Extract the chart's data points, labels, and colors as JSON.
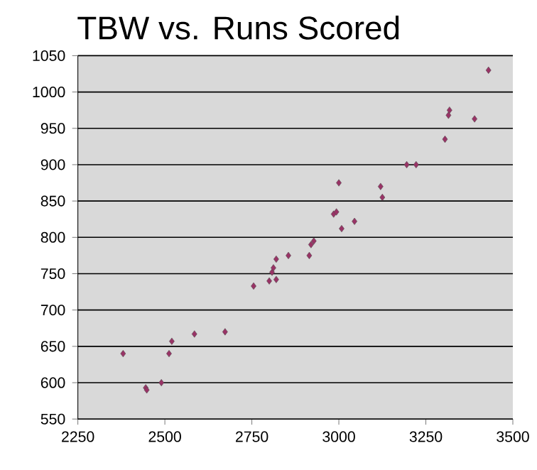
{
  "chart_data": {
    "type": "scatter",
    "title": "TBW vs. Runs Scored",
    "marker": "diamond",
    "grid": "y",
    "x": [
      2380,
      2445,
      2448,
      2490,
      2512,
      2520,
      2585,
      2673,
      2755,
      2800,
      2808,
      2812,
      2820,
      2820,
      2855,
      2915,
      2920,
      2928,
      2985,
      2993,
      3000,
      3008,
      3045,
      3120,
      3125,
      3195,
      3222,
      3305,
      3315,
      3318,
      3390,
      3430
    ],
    "values": [
      640,
      593,
      590,
      600,
      640,
      657,
      667,
      670,
      733,
      740,
      752,
      758,
      742,
      770,
      775,
      775,
      790,
      795,
      832,
      835,
      875,
      812,
      822,
      870,
      855,
      900,
      900,
      935,
      968,
      975,
      963,
      1030
    ],
    "color": "#993366",
    "xlim": [
      2250,
      3500
    ],
    "xticks": [
      2250,
      2500,
      2750,
      3000,
      3250,
      3500
    ],
    "ylim": [
      550,
      1050
    ],
    "yticks": [
      550,
      600,
      650,
      700,
      750,
      800,
      850,
      900,
      950,
      1000,
      1050
    ]
  }
}
